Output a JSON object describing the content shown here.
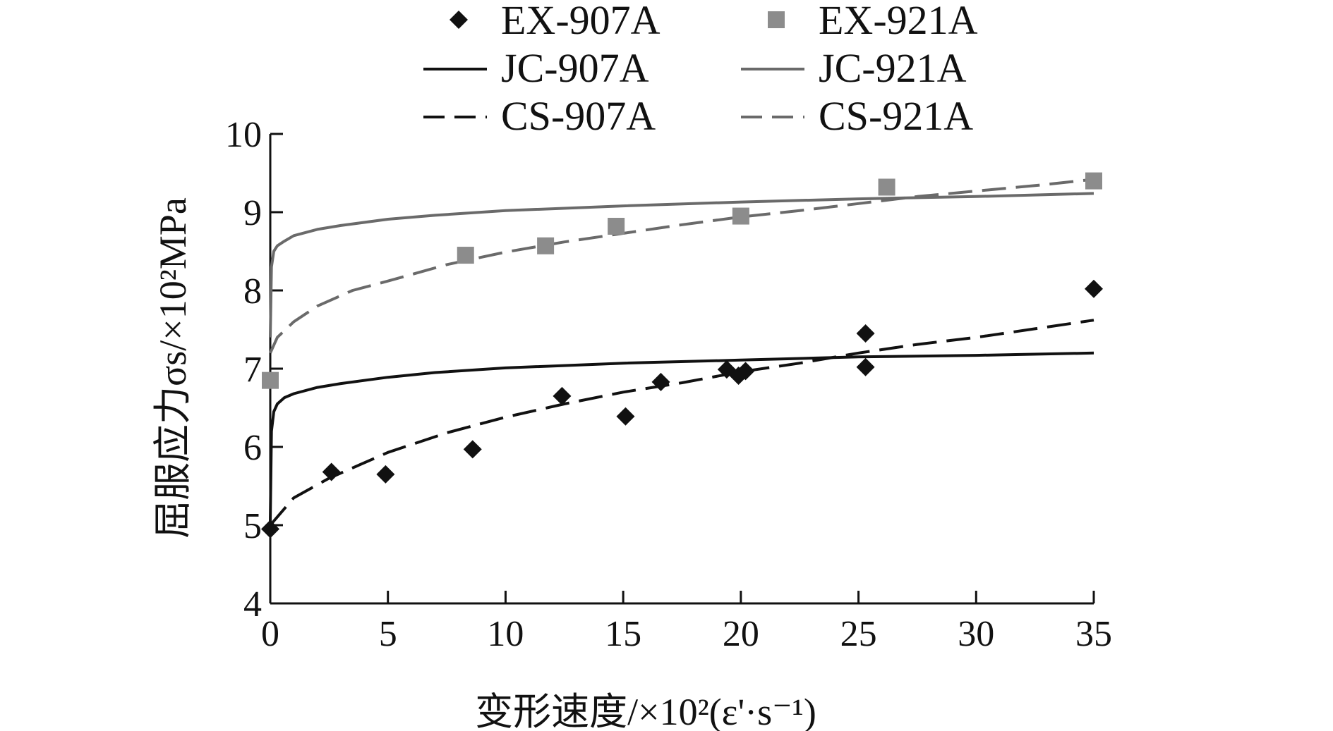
{
  "chart_data": {
    "type": "scatter",
    "title": "",
    "xlabel": "变形速度/×10²(ε'·s⁻¹)",
    "ylabel": "屈服应力σs/×10²MPa",
    "xlim": [
      0,
      35
    ],
    "ylim": [
      4,
      10
    ],
    "xticks": [
      "0",
      "5",
      "10",
      "15",
      "20",
      "25",
      "30",
      "35"
    ],
    "yticks": [
      "4",
      "5",
      "6",
      "7",
      "8",
      "9",
      "10"
    ],
    "grid": false,
    "legend_position": "top",
    "colors": {
      "c907": "#111111",
      "c921": "#6a6a6a",
      "m921": "#8c8c8c"
    },
    "series": [
      {
        "name": "EX-907A",
        "kind": "marker",
        "marker": "diamond",
        "color_key": "c907",
        "points": [
          [
            0,
            4.95
          ],
          [
            2.6,
            5.68
          ],
          [
            4.9,
            5.65
          ],
          [
            8.6,
            5.97
          ],
          [
            12.4,
            6.65
          ],
          [
            15.1,
            6.39
          ],
          [
            16.6,
            6.83
          ],
          [
            19.4,
            6.99
          ],
          [
            19.9,
            6.91
          ],
          [
            20.2,
            6.97
          ],
          [
            25.3,
            7.45
          ],
          [
            25.3,
            7.02
          ],
          [
            35,
            8.02
          ]
        ]
      },
      {
        "name": "EX-921A",
        "kind": "marker",
        "marker": "square",
        "color_key": "m921",
        "points": [
          [
            0,
            6.85
          ],
          [
            8.3,
            8.45
          ],
          [
            11.7,
            8.57
          ],
          [
            14.7,
            8.82
          ],
          [
            20,
            8.95
          ],
          [
            26.2,
            9.32
          ],
          [
            35,
            9.4
          ]
        ]
      },
      {
        "name": "JC-907A",
        "kind": "line",
        "dash": "solid",
        "color_key": "c907",
        "points": [
          [
            0,
            5.05
          ],
          [
            0.05,
            6.2
          ],
          [
            0.15,
            6.45
          ],
          [
            0.3,
            6.55
          ],
          [
            0.6,
            6.63
          ],
          [
            1,
            6.68
          ],
          [
            2,
            6.76
          ],
          [
            3,
            6.81
          ],
          [
            5,
            6.89
          ],
          [
            7,
            6.95
          ],
          [
            10,
            7.01
          ],
          [
            15,
            7.07
          ],
          [
            20,
            7.11
          ],
          [
            25,
            7.15
          ],
          [
            30,
            7.17
          ],
          [
            35,
            7.2
          ]
        ]
      },
      {
        "name": "JC-921A",
        "kind": "line",
        "dash": "solid",
        "color_key": "c921",
        "points": [
          [
            0,
            7.4
          ],
          [
            0.05,
            8.3
          ],
          [
            0.15,
            8.5
          ],
          [
            0.3,
            8.57
          ],
          [
            0.6,
            8.63
          ],
          [
            1,
            8.7
          ],
          [
            2,
            8.78
          ],
          [
            3,
            8.83
          ],
          [
            5,
            8.91
          ],
          [
            7,
            8.96
          ],
          [
            10,
            9.02
          ],
          [
            15,
            9.08
          ],
          [
            20,
            9.13
          ],
          [
            25,
            9.17
          ],
          [
            30,
            9.2
          ],
          [
            35,
            9.24
          ]
        ]
      },
      {
        "name": "CS-907A",
        "kind": "line",
        "dash": "dashed",
        "color_key": "c907",
        "points": [
          [
            0,
            5.0
          ],
          [
            1,
            5.35
          ],
          [
            2.5,
            5.6
          ],
          [
            5,
            5.93
          ],
          [
            7.5,
            6.18
          ],
          [
            10,
            6.38
          ],
          [
            12.5,
            6.55
          ],
          [
            15,
            6.7
          ],
          [
            17.5,
            6.82
          ],
          [
            20,
            6.96
          ],
          [
            22.5,
            7.07
          ],
          [
            25,
            7.2
          ],
          [
            27.5,
            7.31
          ],
          [
            30,
            7.4
          ],
          [
            32.5,
            7.51
          ],
          [
            35,
            7.62
          ]
        ]
      },
      {
        "name": "CS-921A",
        "kind": "line",
        "dash": "dashed",
        "color_key": "c921",
        "points": [
          [
            0,
            7.2
          ],
          [
            0.3,
            7.4
          ],
          [
            1,
            7.6
          ],
          [
            2,
            7.8
          ],
          [
            3.5,
            8.0
          ],
          [
            5,
            8.12
          ],
          [
            7.5,
            8.33
          ],
          [
            10,
            8.49
          ],
          [
            12.5,
            8.62
          ],
          [
            15,
            8.73
          ],
          [
            17.5,
            8.84
          ],
          [
            20,
            8.94
          ],
          [
            22.5,
            9.02
          ],
          [
            25,
            9.11
          ],
          [
            27.5,
            9.2
          ],
          [
            30,
            9.27
          ],
          [
            32.5,
            9.34
          ],
          [
            35,
            9.42
          ]
        ]
      }
    ]
  }
}
